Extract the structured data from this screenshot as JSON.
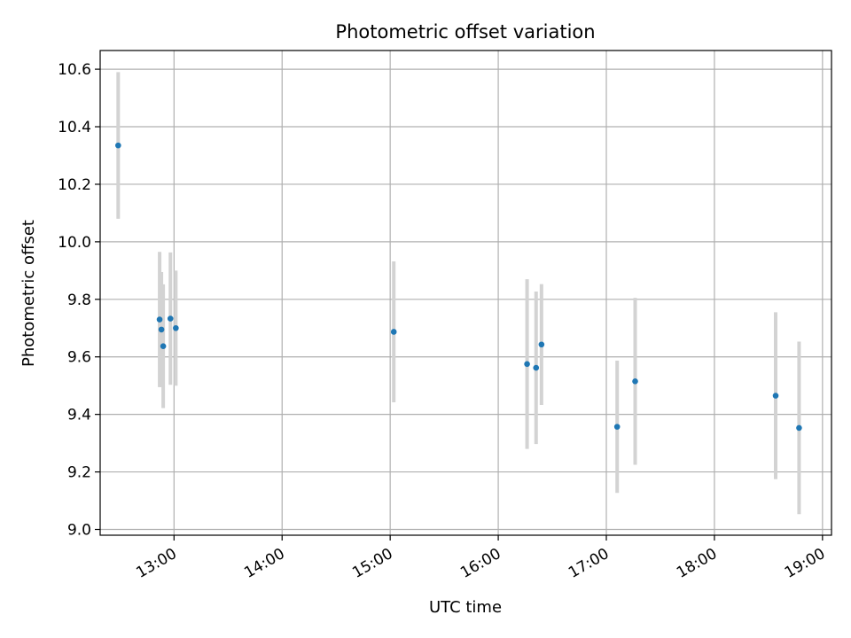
{
  "chart_data": {
    "type": "scatter",
    "title": "Photometric offset variation",
    "xlabel": "UTC time",
    "ylabel": "Photometric offset",
    "xlim": [
      "12:19",
      "19:05"
    ],
    "ylim": [
      8.98,
      10.665
    ],
    "x_ticks": [
      "13:00",
      "14:00",
      "15:00",
      "16:00",
      "17:00",
      "18:00",
      "19:00"
    ],
    "y_ticks": [
      "9.0",
      "9.2",
      "9.4",
      "9.6",
      "9.8",
      "10.0",
      "10.2",
      "10.4",
      "10.6"
    ],
    "grid": true,
    "colors": {
      "point": "#1f77b4",
      "errorbar": "#d3d3d3",
      "grid": "#b0b0b0",
      "axis": "#000000"
    },
    "points": [
      {
        "time": "12:29",
        "y": 10.335,
        "yerr": 0.255
      },
      {
        "time": "12:52",
        "y": 9.73,
        "yerr": 0.235
      },
      {
        "time": "12:53",
        "y": 9.695,
        "yerr": 0.2
      },
      {
        "time": "12:54",
        "y": 9.637,
        "yerr": 0.215
      },
      {
        "time": "12:58",
        "y": 9.733,
        "yerr": 0.23
      },
      {
        "time": "13:01",
        "y": 9.7,
        "yerr": 0.2
      },
      {
        "time": "15:02",
        "y": 9.687,
        "yerr": 0.245
      },
      {
        "time": "16:16",
        "y": 9.575,
        "yerr": 0.295
      },
      {
        "time": "16:21",
        "y": 9.562,
        "yerr": 0.265
      },
      {
        "time": "16:24",
        "y": 9.643,
        "yerr": 0.21
      },
      {
        "time": "17:06",
        "y": 9.357,
        "yerr": 0.23
      },
      {
        "time": "17:16",
        "y": 9.515,
        "yerr": 0.29
      },
      {
        "time": "18:34",
        "y": 9.465,
        "yerr": 0.29
      },
      {
        "time": "18:47",
        "y": 9.353,
        "yerr": 0.3
      }
    ]
  }
}
